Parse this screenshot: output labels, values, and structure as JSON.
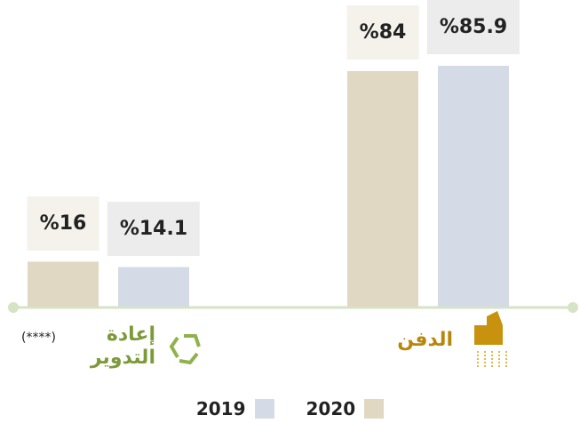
{
  "chart_data": {
    "type": "bar",
    "categories": [
      "إعادة التدوير",
      "الدفن"
    ],
    "annotations": [
      "(****)"
    ],
    "series": [
      {
        "name": "2020",
        "color": "#e0d8c3",
        "values": [
          16,
          84
        ],
        "value_labels": [
          "%16",
          "%84"
        ]
      },
      {
        "name": "2019",
        "color": "#d5dbe6",
        "values": [
          14.1,
          85.9
        ],
        "value_labels": [
          "%14.1",
          "%85.9"
        ]
      }
    ],
    "legend": "bottom"
  }
}
